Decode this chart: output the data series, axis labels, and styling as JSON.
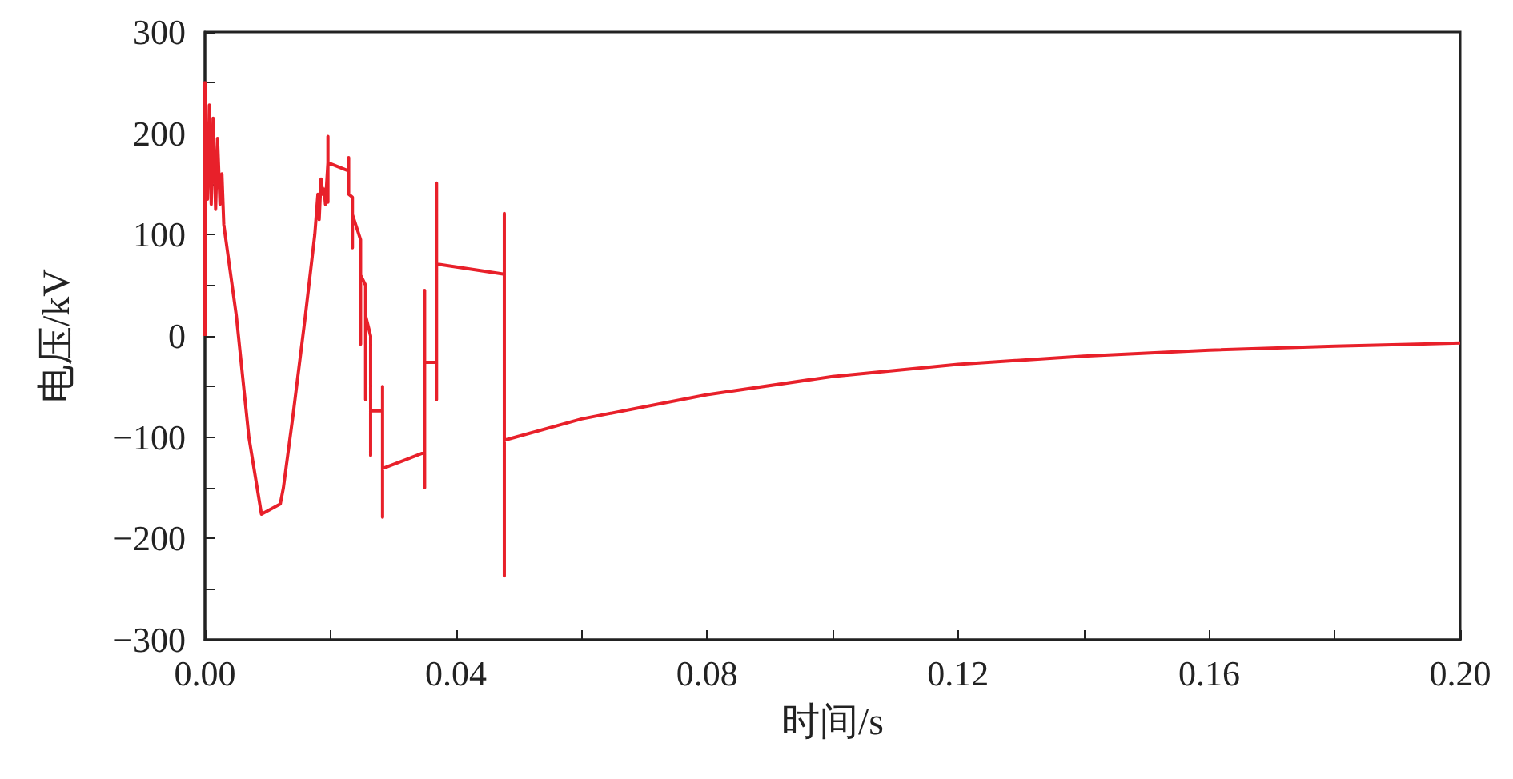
{
  "chart_data": {
    "type": "line",
    "xlabel": "时间/s",
    "ylabel": "电压/kV",
    "x": [
      0,
      0,
      0.0004,
      0.0007,
      0.001,
      0.0013,
      0.0017,
      0.002,
      0.0024,
      0.0027,
      0.003,
      0.005,
      0.007,
      0.009,
      0.012,
      0.0125,
      0.014,
      0.016,
      0.0175,
      0.018,
      0.0182,
      0.0185,
      0.0188,
      0.019,
      0.0192,
      0.0196,
      0.0196,
      0.0196,
      0.0196,
      0.0229,
      0.0229,
      0.0229,
      0.0235,
      0.0235,
      0.0235,
      0.0248,
      0.0248,
      0.0248,
      0.0256,
      0.0256,
      0.0256,
      0.0264,
      0.0264,
      0.0264,
      0.0283,
      0.0283,
      0.0283,
      0.0283,
      0.035,
      0.035,
      0.035,
      0.035,
      0.0369,
      0.0369,
      0.0369,
      0.0369,
      0.0477,
      0.0477,
      0.0477,
      0.0477,
      0.06,
      0.08,
      0.1,
      0.12,
      0.14,
      0.16,
      0.18,
      0.2
    ],
    "series": [
      {
        "color": "#e8202a",
        "values": [
          0,
          250,
          135,
          228,
          130,
          215,
          125,
          195,
          130,
          160,
          110,
          20,
          -100,
          -176,
          -166,
          -150,
          -80,
          20,
          100,
          140,
          115,
          155,
          140,
          145,
          130,
          171,
          197,
          132,
          171,
          163,
          176,
          140,
          137,
          87,
          120,
          95,
          -8,
          60,
          50,
          -63,
          20,
          0,
          -118,
          -74,
          -74,
          -50,
          -179,
          -131,
          -115,
          45,
          -150,
          -26,
          -26,
          151,
          -63,
          71,
          61,
          121,
          -237,
          -103,
          -82,
          -58,
          -40,
          -28,
          -20,
          -14,
          -10,
          -7
        ]
      }
    ],
    "xlim": [
      0,
      0.2
    ],
    "xticks": [
      {
        "value": 0,
        "label": "0.00"
      },
      {
        "value": 0.02,
        "label": null
      },
      {
        "value": 0.04,
        "label": "0.04"
      },
      {
        "value": 0.06,
        "label": null
      },
      {
        "value": 0.08,
        "label": "0.08"
      },
      {
        "value": 0.1,
        "label": null
      },
      {
        "value": 0.12,
        "label": "0.12"
      },
      {
        "value": 0.14,
        "label": null
      },
      {
        "value": 0.16,
        "label": "0.16"
      },
      {
        "value": 0.18,
        "label": null
      },
      {
        "value": 0.2,
        "label": "0.20"
      }
    ],
    "ylim": [
      -300,
      300
    ],
    "yticks": [
      {
        "value": -300,
        "label": "−300"
      },
      {
        "value": -250,
        "label": null
      },
      {
        "value": -200,
        "label": "−200"
      },
      {
        "value": -150,
        "label": null
      },
      {
        "value": -100,
        "label": "−100"
      },
      {
        "value": -50,
        "label": null
      },
      0,
      {
        "value": 50,
        "label": null
      },
      100,
      {
        "value": 150,
        "label": null
      },
      200,
      {
        "value": 250,
        "label": null
      },
      300
    ],
    "grid": false,
    "marker": "none",
    "line_style": "solid"
  }
}
